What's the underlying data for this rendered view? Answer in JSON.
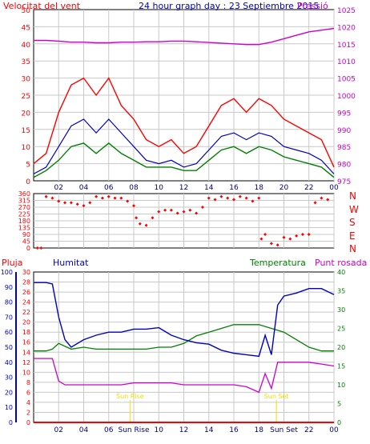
{
  "header": {
    "left_label": "Velocitat del vent",
    "title": "24 hour graph day : 23 Septiembre 2015",
    "right_label": "Pressió"
  },
  "direction_labels": [
    "N",
    "W",
    "S",
    "E",
    "N"
  ],
  "bottom_labels": {
    "rain": "Pluja",
    "humidity": "Humitat",
    "temperature": "Temperatura",
    "dewpoint": "Punt rosada",
    "sunrise": "Sun Rise",
    "sunset": "Sun Set"
  },
  "colors": {
    "wind": "#ff0000",
    "wind_avg": "#0000c0",
    "gust": "#008000",
    "pressure": "#cc00cc",
    "direction": "#ff0000",
    "humidity": "#0000c0",
    "temperature": "#008000",
    "dewpoint": "#cc00cc",
    "rain": "#ff0000",
    "sun": "#ffd700",
    "grid": "#c8c8c8",
    "title": "#0000c0"
  },
  "x_ticks": [
    "02",
    "04",
    "06",
    "08",
    "10",
    "12",
    "14",
    "16",
    "18",
    "20",
    "22",
    "00"
  ],
  "x_ticks_bottom": [
    "02",
    "04",
    "06",
    "Sun Rise",
    "10",
    "12",
    "14",
    "16",
    "18",
    "Sun Set",
    "22",
    "00"
  ],
  "chart_data": [
    {
      "type": "line",
      "name": "wind",
      "x_range_hours": [
        0,
        24
      ],
      "y_left_ticks": [
        0,
        5,
        10,
        15,
        20,
        25,
        30,
        35,
        40,
        45,
        50
      ],
      "y_left_range": [
        0,
        50
      ],
      "y_right_ticks": [
        975,
        980,
        985,
        990,
        995,
        1000,
        1005,
        1010,
        1015,
        1020,
        1025
      ],
      "y_right_range": [
        975,
        1025
      ],
      "series": [
        {
          "name": "Velocitat del vent",
          "axis": "left",
          "x": [
            0,
            1,
            2,
            3,
            4,
            5,
            6,
            7,
            8,
            9,
            10,
            11,
            12,
            13,
            14,
            15,
            16,
            17,
            18,
            19,
            20,
            21,
            22,
            23,
            24
          ],
          "y": [
            5,
            8,
            20,
            28,
            30,
            25,
            30,
            22,
            18,
            12,
            10,
            12,
            8,
            10,
            16,
            22,
            24,
            20,
            24,
            22,
            18,
            16,
            14,
            12,
            4
          ]
        },
        {
          "name": "Avg",
          "axis": "left",
          "x": [
            0,
            1,
            2,
            3,
            4,
            5,
            6,
            7,
            8,
            9,
            10,
            11,
            12,
            13,
            14,
            15,
            16,
            17,
            18,
            19,
            20,
            21,
            22,
            23,
            24
          ],
          "y": [
            2,
            4,
            10,
            16,
            18,
            14,
            18,
            14,
            10,
            6,
            5,
            6,
            4,
            5,
            9,
            13,
            14,
            12,
            14,
            13,
            10,
            9,
            8,
            6,
            2
          ]
        },
        {
          "name": "Gust",
          "axis": "left",
          "x": [
            0,
            1,
            2,
            3,
            4,
            5,
            6,
            7,
            8,
            9,
            10,
            11,
            12,
            13,
            14,
            15,
            16,
            17,
            18,
            19,
            20,
            21,
            22,
            23,
            24
          ],
          "y": [
            1,
            3,
            6,
            10,
            11,
            8,
            11,
            8,
            6,
            4,
            4,
            4,
            3,
            3,
            6,
            9,
            10,
            8,
            10,
            9,
            7,
            6,
            5,
            4,
            1
          ]
        },
        {
          "name": "Pressió",
          "axis": "right",
          "x": [
            0,
            1,
            2,
            3,
            4,
            5,
            6,
            7,
            8,
            9,
            10,
            11,
            12,
            13,
            14,
            15,
            16,
            17,
            18,
            19,
            20,
            21,
            22,
            23,
            24
          ],
          "y": [
            1016,
            1016,
            1015.8,
            1015.5,
            1015.5,
            1015.3,
            1015.3,
            1015.5,
            1015.5,
            1015.6,
            1015.6,
            1015.8,
            1015.8,
            1015.6,
            1015.4,
            1015.2,
            1015,
            1014.8,
            1014.8,
            1015.5,
            1016.5,
            1017.5,
            1018.5,
            1019,
            1019.5
          ]
        }
      ]
    },
    {
      "type": "scatter",
      "name": "direction",
      "y_ticks": [
        0,
        45,
        90,
        135,
        180,
        225,
        270,
        315,
        360
      ],
      "y_range": [
        0,
        360
      ],
      "series": [
        {
          "name": "Direction",
          "x": [
            0.3,
            0.6,
            1,
            1.5,
            2,
            2.5,
            3,
            3.5,
            4,
            4.5,
            5,
            5.5,
            6,
            6.5,
            7,
            7.5,
            8,
            8.2,
            8.5,
            9,
            9.5,
            10,
            10.5,
            11,
            11.5,
            12,
            12.5,
            13,
            13.5,
            14,
            14.5,
            15,
            15.5,
            16,
            16.5,
            17,
            17.5,
            18,
            18.2,
            18.5,
            19,
            19.5,
            20,
            20.5,
            21,
            21.5,
            22,
            22.5,
            23,
            23.5
          ],
          "y": [
            0,
            0,
            340,
            330,
            310,
            300,
            300,
            290,
            280,
            300,
            340,
            330,
            340,
            330,
            330,
            310,
            280,
            200,
            160,
            150,
            200,
            240,
            250,
            250,
            230,
            240,
            250,
            230,
            270,
            330,
            320,
            340,
            330,
            320,
            340,
            330,
            310,
            330,
            60,
            90,
            30,
            20,
            70,
            60,
            80,
            90,
            90,
            300,
            330,
            320
          ]
        }
      ]
    },
    {
      "type": "line",
      "name": "humidity_temperature",
      "y_left_ticks": [
        0,
        10,
        20,
        30,
        40,
        50,
        60,
        70,
        80,
        90,
        100
      ],
      "y_left_range": [
        0,
        100
      ],
      "y_mid_ticks": [
        0,
        2,
        4,
        6,
        8,
        10,
        12,
        14,
        16,
        18,
        20,
        22,
        24,
        26,
        28,
        30
      ],
      "y_mid_range": [
        0,
        30
      ],
      "y_right_ticks": [
        0,
        5,
        10,
        15,
        20,
        25,
        30,
        35,
        40
      ],
      "y_right_range": [
        0,
        40
      ],
      "series": [
        {
          "name": "Humitat",
          "axis": "left",
          "x": [
            0,
            1,
            1.5,
            2,
            2.5,
            3,
            4,
            5,
            6,
            7,
            8,
            9,
            10,
            11,
            12,
            13,
            14,
            15,
            16,
            17,
            18,
            18.5,
            19,
            19.5,
            20,
            21,
            22,
            23,
            24
          ],
          "y": [
            93,
            93,
            92,
            70,
            55,
            50,
            55,
            58,
            60,
            60,
            62,
            62,
            63,
            58,
            55,
            53,
            52,
            48,
            46,
            45,
            44,
            58,
            45,
            78,
            84,
            86,
            89,
            89,
            85
          ]
        },
        {
          "name": "Temperatura",
          "axis": "right",
          "x": [
            0,
            1,
            1.5,
            2,
            3,
            4,
            5,
            6,
            7,
            8,
            9,
            10,
            11,
            12,
            13,
            14,
            15,
            16,
            17,
            18,
            19,
            20,
            21,
            22,
            23,
            24
          ],
          "y": [
            19,
            19,
            19.5,
            21,
            19.5,
            20,
            19.5,
            19.5,
            19.5,
            19.5,
            19.5,
            20,
            20,
            21,
            23,
            24,
            25,
            26,
            26,
            26,
            25,
            24,
            22,
            20,
            19,
            19
          ]
        },
        {
          "name": "Punt rosada",
          "axis": "right",
          "x": [
            0,
            1,
            1.5,
            2,
            2.5,
            3,
            4,
            5,
            6,
            7,
            8,
            9,
            10,
            11,
            12,
            13,
            14,
            15,
            16,
            17,
            18,
            18.5,
            19,
            19.5,
            20,
            21,
            22,
            23,
            24
          ],
          "y": [
            17,
            17,
            17,
            11,
            10,
            10,
            10,
            10,
            10,
            10,
            10.5,
            10.5,
            10.5,
            10.5,
            10,
            10,
            10,
            10,
            10,
            9.5,
            8,
            13,
            9,
            16,
            16,
            16,
            16,
            15.5,
            15
          ]
        },
        {
          "name": "Pluja",
          "axis": "mid",
          "x": [
            0,
            24
          ],
          "y": [
            0,
            0
          ]
        }
      ]
    }
  ]
}
